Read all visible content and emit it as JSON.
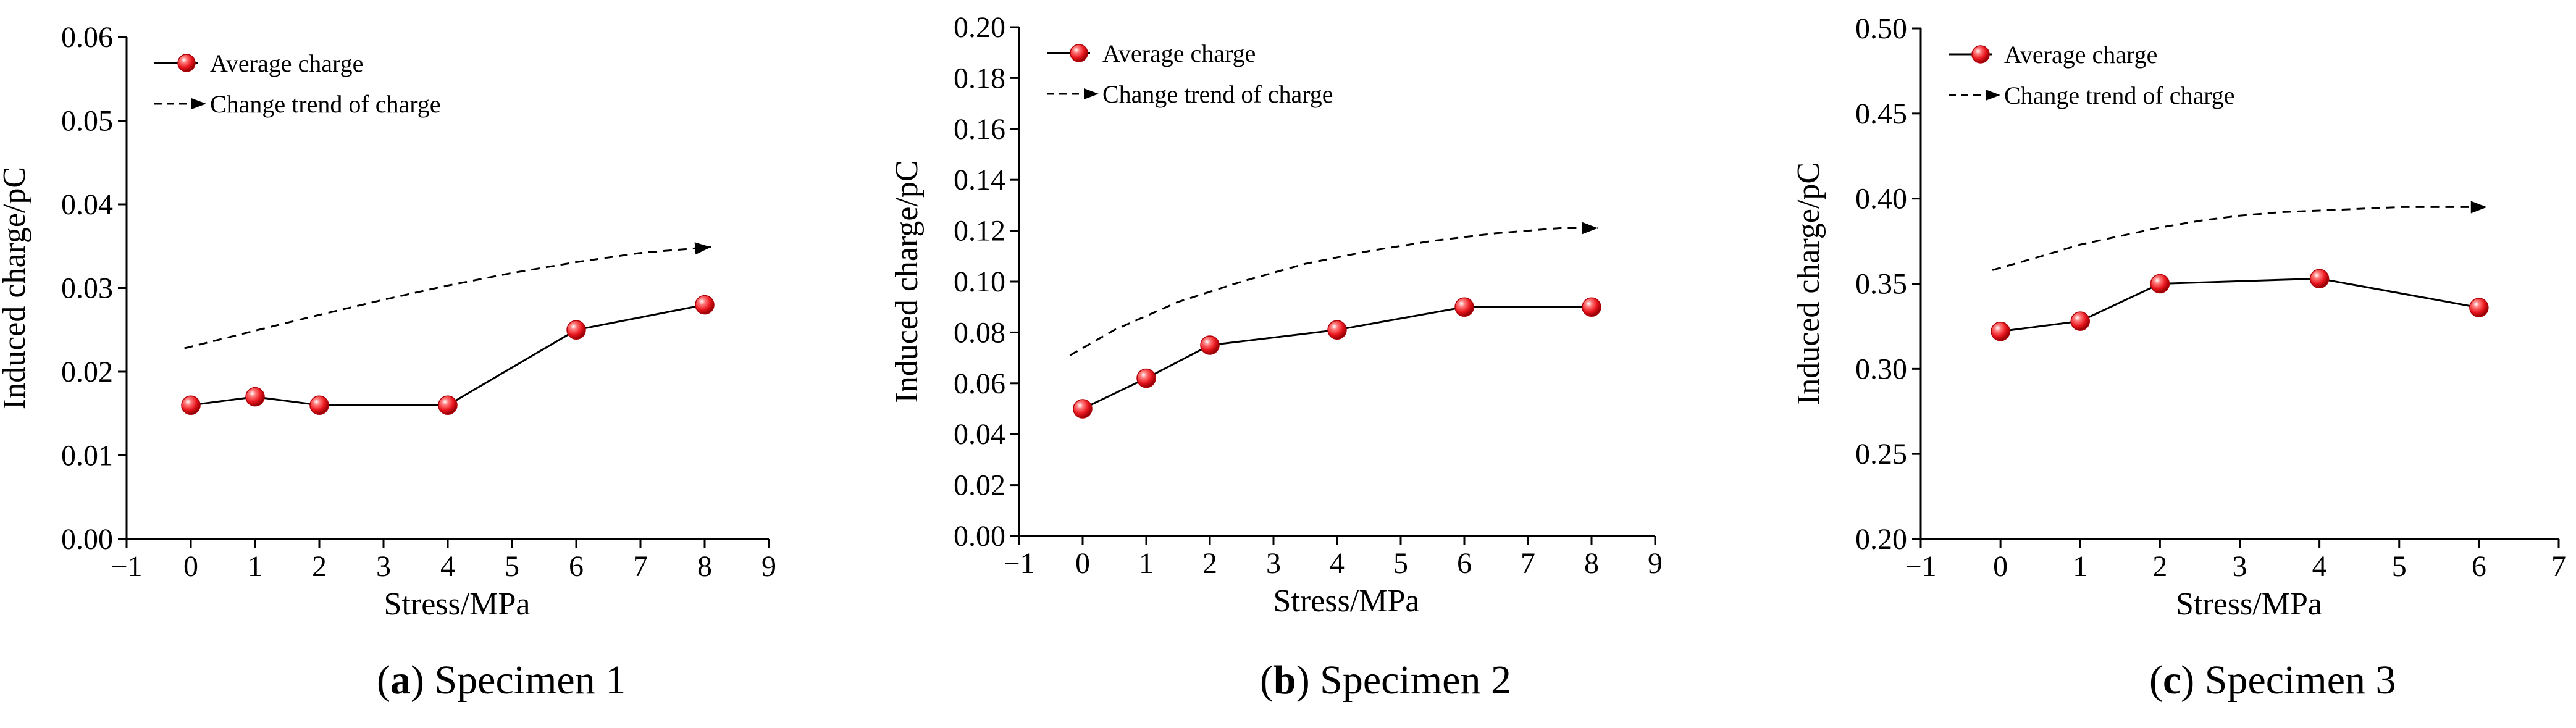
{
  "chart_data": [
    {
      "type": "line",
      "panel_letter": "a",
      "caption": "Specimen 1",
      "xlabel": "Stress/MPa",
      "ylabel": "Induced charge/pC",
      "xlim": [
        -1,
        9
      ],
      "ylim": [
        0,
        0.06
      ],
      "xticks": [
        "−1",
        "0",
        "1",
        "2",
        "3",
        "4",
        "5",
        "6",
        "7",
        "8",
        "9"
      ],
      "yticks": [
        "0.00",
        "0.01",
        "0.02",
        "0.03",
        "0.04",
        "0.05",
        "0.06"
      ],
      "series": [
        {
          "name": "Average charge",
          "style": "solid-marker",
          "x": [
            0,
            1,
            2,
            4,
            6,
            8
          ],
          "values": [
            0.016,
            0.017,
            0.016,
            0.016,
            0.025,
            0.028
          ]
        },
        {
          "name": "Change trend of charge",
          "style": "dashed-arrow",
          "x": [
            -0.1,
            1,
            2,
            3,
            4,
            5,
            6,
            7,
            8.1
          ],
          "values": [
            0.0228,
            0.0249,
            0.0268,
            0.0286,
            0.0303,
            0.0318,
            0.0331,
            0.0342,
            0.0349
          ]
        }
      ],
      "legend_position": "top-left",
      "colors": {
        "marker": "#e8141c",
        "line": "#000000"
      }
    },
    {
      "type": "line",
      "panel_letter": "b",
      "caption": "Specimen 2",
      "xlabel": "Stress/MPa",
      "ylabel": "Induced charge/pC",
      "xlim": [
        -1,
        9
      ],
      "ylim": [
        0,
        0.2
      ],
      "xticks": [
        "−1",
        "0",
        "1",
        "2",
        "3",
        "4",
        "5",
        "6",
        "7",
        "8",
        "9"
      ],
      "yticks": [
        "0.00",
        "0.02",
        "0.04",
        "0.06",
        "0.08",
        "0.10",
        "0.12",
        "0.14",
        "0.16",
        "0.18",
        "0.20"
      ],
      "series": [
        {
          "name": "Average charge",
          "style": "solid-marker",
          "x": [
            0,
            1,
            2,
            4,
            6,
            8
          ],
          "values": [
            0.05,
            0.062,
            0.075,
            0.081,
            0.09,
            0.09
          ]
        },
        {
          "name": "Change trend of charge",
          "style": "dashed-arrow",
          "x": [
            -0.2,
            0.5,
            1.5,
            2.5,
            3.5,
            4.5,
            5.5,
            6.5,
            7.5,
            8.1
          ],
          "values": [
            0.071,
            0.081,
            0.092,
            0.1,
            0.107,
            0.112,
            0.116,
            0.119,
            0.121,
            0.121
          ]
        }
      ],
      "legend_position": "top-left",
      "colors": {
        "marker": "#e8141c",
        "line": "#000000"
      }
    },
    {
      "type": "line",
      "panel_letter": "c",
      "caption": "Specimen 3",
      "xlabel": "Stress/MPa",
      "ylabel": "Induced charge/pC",
      "xlim": [
        -1,
        7
      ],
      "ylim": [
        0.2,
        0.5
      ],
      "xticks": [
        "−1",
        "0",
        "1",
        "2",
        "3",
        "4",
        "5",
        "6",
        "7"
      ],
      "yticks": [
        "0.20",
        "0.25",
        "0.30",
        "0.35",
        "0.40",
        "0.45",
        "0.50"
      ],
      "series": [
        {
          "name": "Average charge",
          "style": "solid-marker",
          "x": [
            0,
            1,
            2,
            4,
            6
          ],
          "values": [
            0.322,
            0.328,
            0.35,
            0.353,
            0.336
          ]
        },
        {
          "name": "Change trend of charge",
          "style": "dashed-arrow",
          "x": [
            -0.1,
            0.5,
            1,
            1.5,
            2,
            2.5,
            3,
            3.5,
            4,
            4.5,
            5,
            5.5,
            6.1
          ],
          "values": [
            0.358,
            0.366,
            0.373,
            0.378,
            0.383,
            0.387,
            0.39,
            0.392,
            0.393,
            0.394,
            0.395,
            0.395,
            0.395
          ]
        }
      ],
      "legend_position": "top-left",
      "colors": {
        "marker": "#e8141c",
        "line": "#000000"
      }
    }
  ]
}
